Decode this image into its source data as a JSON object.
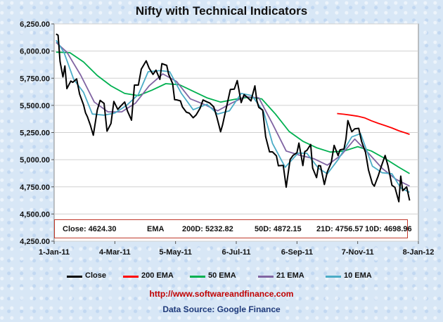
{
  "chart_data": {
    "type": "line",
    "title": "Nifty with Technical Indicators",
    "ylim": [
      4250,
      6250
    ],
    "yticks": [
      "4,250.00",
      "4,500.00",
      "4,750.00",
      "5,000.00",
      "5,250.00",
      "5,500.00",
      "5,750.00",
      "6,000.00",
      "6,250.00"
    ],
    "ytick_values": [
      4250,
      4500,
      4750,
      5000,
      5250,
      5500,
      5750,
      6000,
      6250
    ],
    "xticks": [
      "1-Jan-11",
      "4-Mar-11",
      "5-May-11",
      "6-Jul-11",
      "6-Sep-11",
      "7-Nov-11",
      "8-Jan-12"
    ],
    "xtick_values": [
      "2011-01-01",
      "2011-03-04",
      "2011-05-05",
      "2011-07-06",
      "2011-09-06",
      "2011-11-07",
      "2012-01-08"
    ],
    "xlim": [
      "2011-01-01",
      "2012-01-08"
    ],
    "series": [
      {
        "name": "Close",
        "color": "#000000",
        "points": [
          [
            "2011-01-03",
            6157
          ],
          [
            "2011-01-05",
            6146
          ],
          [
            "2011-01-07",
            5905
          ],
          [
            "2011-01-10",
            5762
          ],
          [
            "2011-01-12",
            5863
          ],
          [
            "2011-01-14",
            5654
          ],
          [
            "2011-01-18",
            5724
          ],
          [
            "2011-01-20",
            5712
          ],
          [
            "2011-01-24",
            5743
          ],
          [
            "2011-01-27",
            5604
          ],
          [
            "2011-01-31",
            5505
          ],
          [
            "2011-02-02",
            5432
          ],
          [
            "2011-02-04",
            5395
          ],
          [
            "2011-02-07",
            5318
          ],
          [
            "2011-02-10",
            5225
          ],
          [
            "2011-02-14",
            5456
          ],
          [
            "2011-02-17",
            5546
          ],
          [
            "2011-02-21",
            5518
          ],
          [
            "2011-02-24",
            5262
          ],
          [
            "2011-02-28",
            5333
          ],
          [
            "2011-03-03",
            5536
          ],
          [
            "2011-03-07",
            5463
          ],
          [
            "2011-03-10",
            5494
          ],
          [
            "2011-03-14",
            5531
          ],
          [
            "2011-03-17",
            5446
          ],
          [
            "2011-03-21",
            5364
          ],
          [
            "2011-03-24",
            5687
          ],
          [
            "2011-03-28",
            5687
          ],
          [
            "2011-03-31",
            5833
          ],
          [
            "2011-04-05",
            5910
          ],
          [
            "2011-04-08",
            5842
          ],
          [
            "2011-04-12",
            5785
          ],
          [
            "2011-04-15",
            5824
          ],
          [
            "2011-04-19",
            5740
          ],
          [
            "2011-04-21",
            5884
          ],
          [
            "2011-04-26",
            5868
          ],
          [
            "2011-04-28",
            5785
          ],
          [
            "2011-05-02",
            5701
          ],
          [
            "2011-05-04",
            5552
          ],
          [
            "2011-05-06",
            5551
          ],
          [
            "2011-05-10",
            5541
          ],
          [
            "2011-05-12",
            5486
          ],
          [
            "2011-05-16",
            5438
          ],
          [
            "2011-05-19",
            5428
          ],
          [
            "2011-05-23",
            5386
          ],
          [
            "2011-05-26",
            5412
          ],
          [
            "2011-05-30",
            5473
          ],
          [
            "2011-06-02",
            5550
          ],
          [
            "2011-06-06",
            5533
          ],
          [
            "2011-06-09",
            5521
          ],
          [
            "2011-06-13",
            5486
          ],
          [
            "2011-06-16",
            5396
          ],
          [
            "2011-06-20",
            5257
          ],
          [
            "2011-06-22",
            5320
          ],
          [
            "2011-06-27",
            5526
          ],
          [
            "2011-06-30",
            5647
          ],
          [
            "2011-07-04",
            5650
          ],
          [
            "2011-07-07",
            5728
          ],
          [
            "2011-07-11",
            5526
          ],
          [
            "2011-07-14",
            5599
          ],
          [
            "2011-07-18",
            5568
          ],
          [
            "2011-07-21",
            5541
          ],
          [
            "2011-07-25",
            5680
          ],
          [
            "2011-07-27",
            5546
          ],
          [
            "2011-07-29",
            5482
          ],
          [
            "2011-08-02",
            5456
          ],
          [
            "2011-08-05",
            5211
          ],
          [
            "2011-08-09",
            5072
          ],
          [
            "2011-08-12",
            5072
          ],
          [
            "2011-08-16",
            5035
          ],
          [
            "2011-08-18",
            4944
          ],
          [
            "2011-08-23",
            4948
          ],
          [
            "2011-08-26",
            4747
          ],
          [
            "2011-08-30",
            5002
          ],
          [
            "2011-09-02",
            5040
          ],
          [
            "2011-09-06",
            5064
          ],
          [
            "2011-09-08",
            5153
          ],
          [
            "2011-09-12",
            4946
          ],
          [
            "2011-09-14",
            5075
          ],
          [
            "2011-09-16",
            5084
          ],
          [
            "2011-09-20",
            5140
          ],
          [
            "2011-09-22",
            4923
          ],
          [
            "2011-09-26",
            4835
          ],
          [
            "2011-09-28",
            4946
          ],
          [
            "2011-09-30",
            4943
          ],
          [
            "2011-10-04",
            4772
          ],
          [
            "2011-10-07",
            4888
          ],
          [
            "2011-10-11",
            4974
          ],
          [
            "2011-10-14",
            5132
          ],
          [
            "2011-10-18",
            5038
          ],
          [
            "2011-10-20",
            5091
          ],
          [
            "2011-10-24",
            5098
          ],
          [
            "2011-10-26",
            5191
          ],
          [
            "2011-10-28",
            5360
          ],
          [
            "2011-11-01",
            5257
          ],
          [
            "2011-11-04",
            5284
          ],
          [
            "2011-11-08",
            5289
          ],
          [
            "2011-11-11",
            5168
          ],
          [
            "2011-11-15",
            5068
          ],
          [
            "2011-11-18",
            4906
          ],
          [
            "2011-11-22",
            4778
          ],
          [
            "2011-11-24",
            4756
          ],
          [
            "2011-11-28",
            4851
          ],
          [
            "2011-12-01",
            4936
          ],
          [
            "2011-12-05",
            5039
          ],
          [
            "2011-12-08",
            4943
          ],
          [
            "2011-12-12",
            4764
          ],
          [
            "2011-12-15",
            4746
          ],
          [
            "2011-12-19",
            4613
          ],
          [
            "2011-12-21",
            4849
          ],
          [
            "2011-12-23",
            4714
          ],
          [
            "2011-12-27",
            4750
          ],
          [
            "2011-12-30",
            4624
          ]
        ]
      },
      {
        "name": "200 EMA",
        "color": "#ff0000",
        "points": [
          [
            "2011-10-17",
            5425
          ],
          [
            "2011-10-24",
            5418
          ],
          [
            "2011-10-31",
            5410
          ],
          [
            "2011-11-07",
            5400
          ],
          [
            "2011-11-14",
            5385
          ],
          [
            "2011-11-21",
            5358
          ],
          [
            "2011-11-28",
            5335
          ],
          [
            "2011-12-05",
            5314
          ],
          [
            "2011-12-12",
            5292
          ],
          [
            "2011-12-19",
            5266
          ],
          [
            "2011-12-26",
            5246
          ],
          [
            "2011-12-30",
            5233
          ]
        ]
      },
      {
        "name": "50 EMA",
        "color": "#00b050",
        "points": [
          [
            "2011-01-03",
            5990
          ],
          [
            "2011-01-17",
            5985
          ],
          [
            "2011-01-31",
            5900
          ],
          [
            "2011-02-14",
            5775
          ],
          [
            "2011-02-28",
            5680
          ],
          [
            "2011-03-14",
            5610
          ],
          [
            "2011-03-28",
            5590
          ],
          [
            "2011-04-11",
            5640
          ],
          [
            "2011-04-25",
            5700
          ],
          [
            "2011-05-09",
            5690
          ],
          [
            "2011-05-23",
            5630
          ],
          [
            "2011-06-06",
            5570
          ],
          [
            "2011-06-20",
            5530
          ],
          [
            "2011-07-04",
            5555
          ],
          [
            "2011-07-18",
            5575
          ],
          [
            "2011-08-01",
            5560
          ],
          [
            "2011-08-15",
            5420
          ],
          [
            "2011-08-29",
            5260
          ],
          [
            "2011-09-12",
            5170
          ],
          [
            "2011-09-26",
            5110
          ],
          [
            "2011-10-10",
            5070
          ],
          [
            "2011-10-24",
            5080
          ],
          [
            "2011-11-07",
            5120
          ],
          [
            "2011-11-21",
            5080
          ],
          [
            "2011-12-05",
            5010
          ],
          [
            "2011-12-19",
            4930
          ],
          [
            "2011-12-30",
            4872
          ]
        ]
      },
      {
        "name": "21 EMA",
        "color": "#8064a2",
        "points": [
          [
            "2011-01-03",
            6080
          ],
          [
            "2011-01-14",
            5990
          ],
          [
            "2011-01-28",
            5780
          ],
          [
            "2011-02-11",
            5530
          ],
          [
            "2011-02-25",
            5440
          ],
          [
            "2011-03-11",
            5440
          ],
          [
            "2011-03-25",
            5520
          ],
          [
            "2011-04-08",
            5680
          ],
          [
            "2011-04-22",
            5790
          ],
          [
            "2011-05-06",
            5720
          ],
          [
            "2011-05-20",
            5560
          ],
          [
            "2011-06-03",
            5510
          ],
          [
            "2011-06-17",
            5450
          ],
          [
            "2011-07-01",
            5520
          ],
          [
            "2011-07-15",
            5580
          ],
          [
            "2011-07-29",
            5570
          ],
          [
            "2011-08-12",
            5330
          ],
          [
            "2011-08-26",
            5080
          ],
          [
            "2011-09-09",
            5040
          ],
          [
            "2011-09-23",
            5010
          ],
          [
            "2011-10-07",
            4950
          ],
          [
            "2011-10-21",
            5040
          ],
          [
            "2011-11-04",
            5190
          ],
          [
            "2011-11-18",
            5060
          ],
          [
            "2011-12-02",
            4920
          ],
          [
            "2011-12-16",
            4820
          ],
          [
            "2011-12-30",
            4757
          ]
        ]
      },
      {
        "name": "10 EMA",
        "color": "#4bacc6",
        "points": [
          [
            "2011-01-03",
            6100
          ],
          [
            "2011-01-11",
            5990
          ],
          [
            "2011-01-21",
            5740
          ],
          [
            "2011-01-31",
            5620
          ],
          [
            "2011-02-09",
            5420
          ],
          [
            "2011-02-21",
            5410
          ],
          [
            "2011-03-04",
            5430
          ],
          [
            "2011-03-16",
            5500
          ],
          [
            "2011-03-28",
            5600
          ],
          [
            "2011-04-07",
            5810
          ],
          [
            "2011-04-19",
            5820
          ],
          [
            "2011-04-29",
            5810
          ],
          [
            "2011-05-11",
            5610
          ],
          [
            "2011-05-23",
            5460
          ],
          [
            "2011-06-06",
            5510
          ],
          [
            "2011-06-17",
            5420
          ],
          [
            "2011-06-29",
            5450
          ],
          [
            "2011-07-11",
            5610
          ],
          [
            "2011-07-22",
            5590
          ],
          [
            "2011-08-03",
            5440
          ],
          [
            "2011-08-12",
            5150
          ],
          [
            "2011-08-25",
            4930
          ],
          [
            "2011-09-07",
            5060
          ],
          [
            "2011-09-16",
            5060
          ],
          [
            "2011-09-28",
            4920
          ],
          [
            "2011-10-07",
            4870
          ],
          [
            "2011-10-18",
            5000
          ],
          [
            "2011-11-01",
            5210
          ],
          [
            "2011-11-10",
            5240
          ],
          [
            "2011-11-22",
            4940
          ],
          [
            "2011-12-02",
            4880
          ],
          [
            "2011-12-12",
            4870
          ],
          [
            "2011-12-21",
            4740
          ],
          [
            "2011-12-30",
            4699
          ]
        ]
      }
    ]
  },
  "info": {
    "close": "Close: 4624.30",
    "ema": "EMA",
    "ema200": "200D: 5232.82",
    "ema50": "50D: 4872.15",
    "ema21": "21D: 4756.57",
    "ema10": "10D: 4698.96"
  },
  "legend": [
    {
      "label": "Close",
      "color": "#000000"
    },
    {
      "label": "200 EMA",
      "color": "#ff0000"
    },
    {
      "label": "50 EMA",
      "color": "#00b050"
    },
    {
      "label": "21 EMA",
      "color": "#8064a2"
    },
    {
      "label": "10 EMA",
      "color": "#4bacc6"
    }
  ],
  "footer": {
    "url": "http://www.softwareandfinance.com",
    "source": "Data Source: Google Finance"
  }
}
